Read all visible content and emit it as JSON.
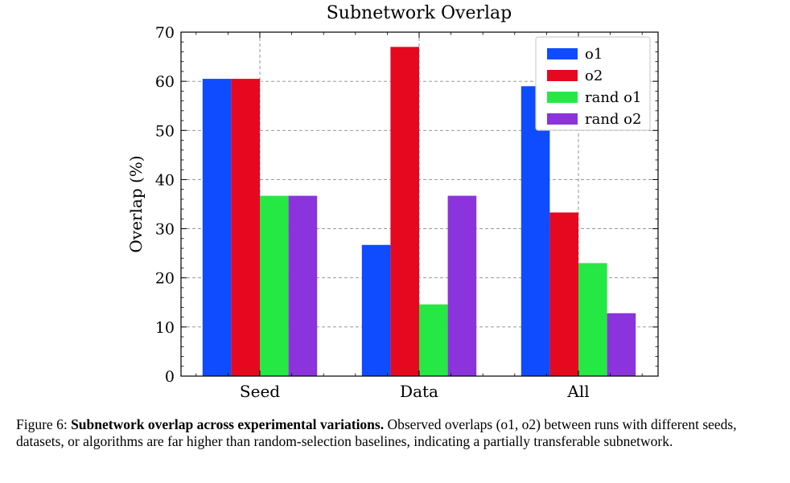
{
  "chart_data": {
    "type": "bar",
    "title": "Subnetwork Overlap",
    "xlabel": "",
    "ylabel": "Overlap (%)",
    "ylim": [
      0,
      70
    ],
    "yticks": [
      0,
      10,
      20,
      30,
      40,
      50,
      60,
      70
    ],
    "categories": [
      "Seed",
      "Data",
      "All"
    ],
    "grid": true,
    "legend_position": "top-right",
    "series": [
      {
        "name": "o1",
        "color": "#0f4bff",
        "values": [
          60.5,
          26.7,
          59.0
        ]
      },
      {
        "name": "o2",
        "color": "#e5081f",
        "values": [
          60.5,
          67.0,
          33.3
        ]
      },
      {
        "name": "rand o1",
        "color": "#26e845",
        "values": [
          36.7,
          14.6,
          23.0
        ]
      },
      {
        "name": "rand o2",
        "color": "#8b33dc",
        "values": [
          36.7,
          36.7,
          12.8
        ]
      }
    ]
  },
  "caption": {
    "prefix": "Figure 6: ",
    "bold": "Subnetwork overlap across experimental variations.",
    "text": "Observed overlaps (o1, o2) between runs with different seeds, datasets, or algorithms are far higher than random-selection baselines, indicating a partially transferable subnetwork."
  }
}
